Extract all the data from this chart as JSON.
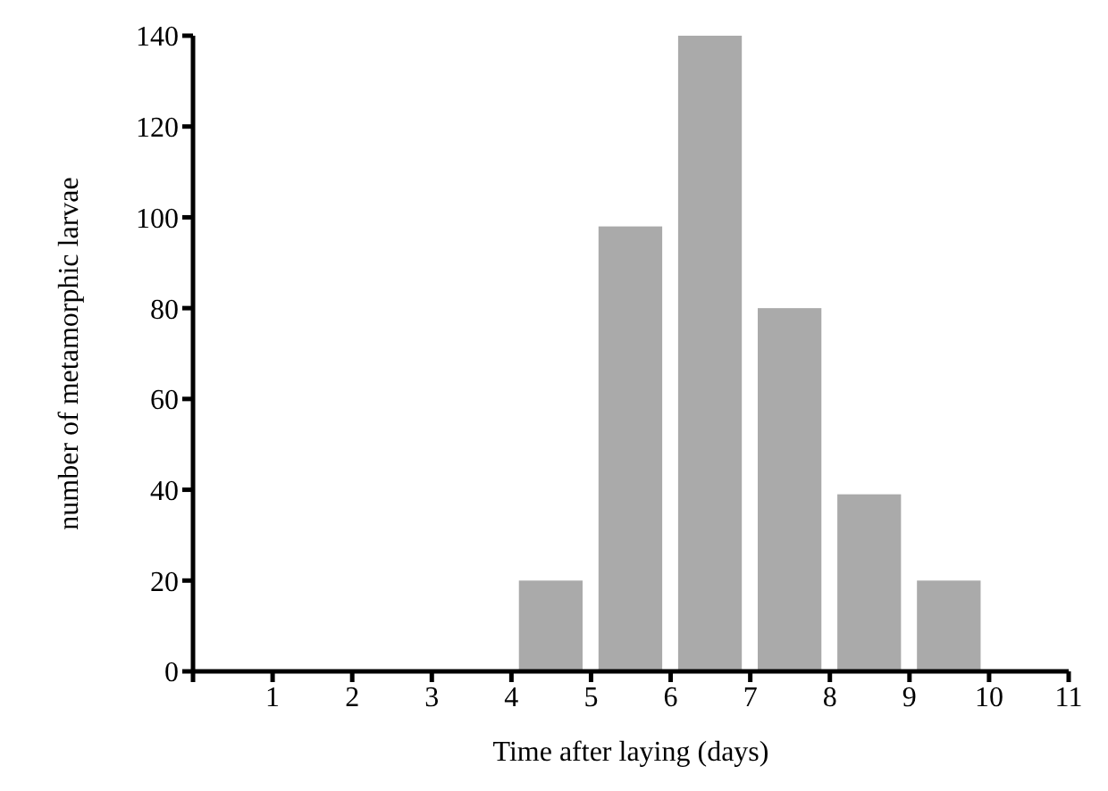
{
  "chart_data": {
    "type": "histogram",
    "xlabel": "Time after laying (days)",
    "ylabel": "number of metamorphic larvae",
    "bins": [
      4,
      5,
      6,
      7,
      8,
      9,
      10
    ],
    "values": [
      20,
      98,
      140,
      80,
      39,
      20
    ],
    "color": "#aaaaaa",
    "xlim": [
      0,
      11
    ],
    "xticks": [
      {
        "value": 0,
        "label": null
      },
      1,
      2,
      3,
      4,
      5,
      6,
      7,
      8,
      9,
      10,
      11
    ],
    "ylim": [
      0,
      140
    ],
    "yticks": [
      0,
      20,
      40,
      60,
      80,
      100,
      120,
      140
    ],
    "grid": false,
    "legend": false
  }
}
